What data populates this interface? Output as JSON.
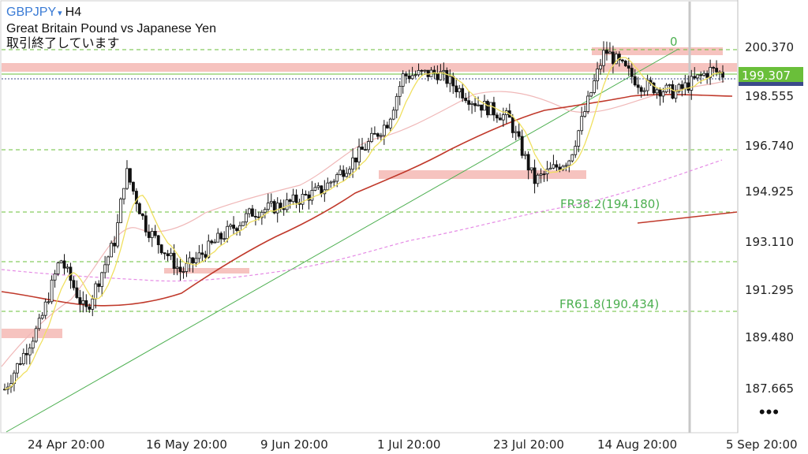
{
  "header": {
    "symbol": "GBPJPY",
    "symbol_arrow": "▾",
    "timeframe": "H4",
    "description": "Great Britain Pound vs Japanese Yen",
    "status": "取引終了しています"
  },
  "more_icon": "•••",
  "colors": {
    "candle": "#111111",
    "fib": "#4caf50",
    "ma_fast": "#f0e060",
    "ma_mid": "#f0b8b8",
    "ma_slow": "#c0392b",
    "ma_long": "#e58be5",
    "zone": "#f4b8b4",
    "price_tag": "#6abf3a"
  },
  "chart_data": {
    "type": "candlestick",
    "symbol": "GBPJPY",
    "timeframe": "H4",
    "y_axis_ticks": [
      "200.370",
      "198.555",
      "196.740",
      "194.925",
      "193.110",
      "191.295",
      "189.480",
      "187.665"
    ],
    "x_axis_ticks": [
      "24 Apr 20:00",
      "16 May 20:00",
      "9 Jun 20:00",
      "1 Jul 20:00",
      "23 Jul 20:00",
      "14 Aug 20:00",
      "5 Sep 20:00"
    ],
    "ylim": [
      186.8,
      201.9
    ],
    "current_price": "199.307",
    "fib_labels": [
      {
        "label": "0",
        "value": 200.55
      },
      {
        "label": "FR38.2(194.180)",
        "value": 194.18
      },
      {
        "label": "FR61.8(190.434)",
        "value": 190.434
      }
    ],
    "fib_extra_levels": [
      196.65,
      192.5
    ],
    "approx_close_path": [
      {
        "date": "2024-04-15",
        "close": 188.3
      },
      {
        "date": "2024-04-22",
        "close": 190.6
      },
      {
        "date": "2024-04-26",
        "close": 192.9
      },
      {
        "date": "2024-05-01",
        "close": 191.0
      },
      {
        "date": "2024-05-07",
        "close": 193.6
      },
      {
        "date": "2024-05-09",
        "close": 196.0
      },
      {
        "date": "2024-05-13",
        "close": 194.0
      },
      {
        "date": "2024-05-20",
        "close": 192.4
      },
      {
        "date": "2024-05-27",
        "close": 193.5
      },
      {
        "date": "2024-06-03",
        "close": 194.5
      },
      {
        "date": "2024-06-10",
        "close": 194.8
      },
      {
        "date": "2024-06-17",
        "close": 195.3
      },
      {
        "date": "2024-06-24",
        "close": 196.5
      },
      {
        "date": "2024-06-30",
        "close": 197.7
      },
      {
        "date": "2024-07-03",
        "close": 199.3
      },
      {
        "date": "2024-07-10",
        "close": 199.4
      },
      {
        "date": "2024-07-17",
        "close": 198.4
      },
      {
        "date": "2024-07-24",
        "close": 197.8
      },
      {
        "date": "2024-07-29",
        "close": 195.6
      },
      {
        "date": "2024-08-05",
        "close": 196.4
      },
      {
        "date": "2024-08-12",
        "close": 200.2
      },
      {
        "date": "2024-08-19",
        "close": 199.0
      },
      {
        "date": "2024-08-26",
        "close": 198.7
      },
      {
        "date": "2024-09-02",
        "close": 199.5
      },
      {
        "date": "2024-09-05",
        "close": 199.307
      }
    ],
    "grid": false
  }
}
